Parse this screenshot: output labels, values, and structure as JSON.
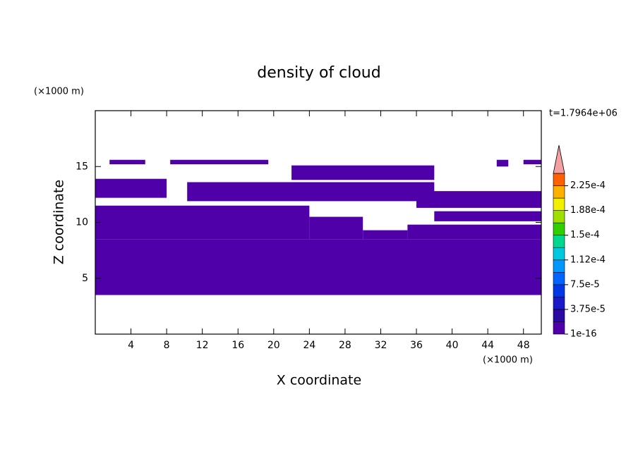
{
  "chart_data": {
    "type": "contour",
    "title": "density of cloud",
    "xlabel": "X coordinate",
    "ylabel": "Z coordinate",
    "xunit": "(×1000 m)",
    "yunit": "(×1000 m)",
    "time_label": "t=1.7964e+06",
    "xlim": [
      0,
      50
    ],
    "ylim": [
      0,
      20
    ],
    "xticks": [
      4,
      8,
      12,
      16,
      20,
      24,
      28,
      32,
      36,
      40,
      44,
      48
    ],
    "yticks": [
      5,
      10,
      15
    ],
    "regions": [
      {
        "x": [
          0,
          50
        ],
        "z": [
          3.5,
          8.5
        ]
      },
      {
        "x": [
          0,
          24
        ],
        "z": [
          8.5,
          11.5
        ]
      },
      {
        "x": [
          24,
          30
        ],
        "z": [
          8.5,
          10.5
        ]
      },
      {
        "x": [
          30,
          35
        ],
        "z": [
          8.5,
          9.3
        ]
      },
      {
        "x": [
          35,
          50
        ],
        "z": [
          8.5,
          9.8
        ]
      },
      {
        "x": [
          38,
          50
        ],
        "z": [
          10.1,
          11.0
        ]
      },
      {
        "x": [
          10.3,
          38
        ],
        "z": [
          11.9,
          13.6
        ]
      },
      {
        "x": [
          0,
          8
        ],
        "z": [
          12.2,
          13.9
        ]
      },
      {
        "x": [
          36,
          50
        ],
        "z": [
          11.3,
          12.8
        ]
      },
      {
        "x": [
          22,
          38
        ],
        "z": [
          13.8,
          15.1
        ]
      },
      {
        "x": [
          1.6,
          5.6
        ],
        "z": [
          15.2,
          15.6
        ]
      },
      {
        "x": [
          8.4,
          19.4
        ],
        "z": [
          15.2,
          15.6
        ]
      },
      {
        "x": [
          45,
          46.3
        ],
        "z": [
          15.0,
          15.6
        ]
      },
      {
        "x": [
          48,
          50
        ],
        "z": [
          15.2,
          15.6
        ]
      }
    ],
    "colorbar": {
      "levels": [
        1e-16,
        1.875e-05,
        3.75e-05,
        5.625e-05,
        7.5e-05,
        9.375e-05,
        0.0001125,
        0.00013125,
        0.00015,
        0.00016875,
        0.0001875,
        0.00020625,
        0.000225,
        0.00024375
      ],
      "colors": [
        "#5000a8",
        "#2a0aa0",
        "#1a1ac8",
        "#0038e8",
        "#0066ff",
        "#0098ff",
        "#00c8e0",
        "#00d890",
        "#30d000",
        "#a0e000",
        "#f0f000",
        "#ffb000",
        "#ff6000"
      ],
      "extend_color": "#f4a0a0",
      "ticks": [
        {
          "value": 1e-16,
          "label": "1e-16"
        },
        {
          "value": 3.75e-05,
          "label": "3.75e-5"
        },
        {
          "value": 7.5e-05,
          "label": "7.5e-5"
        },
        {
          "value": 0.0001125,
          "label": "1.12e-4"
        },
        {
          "value": 0.00015,
          "label": "1.5e-4"
        },
        {
          "value": 0.0001875,
          "label": "1.88e-4"
        },
        {
          "value": 0.000225,
          "label": "2.25e-4"
        }
      ]
    }
  }
}
